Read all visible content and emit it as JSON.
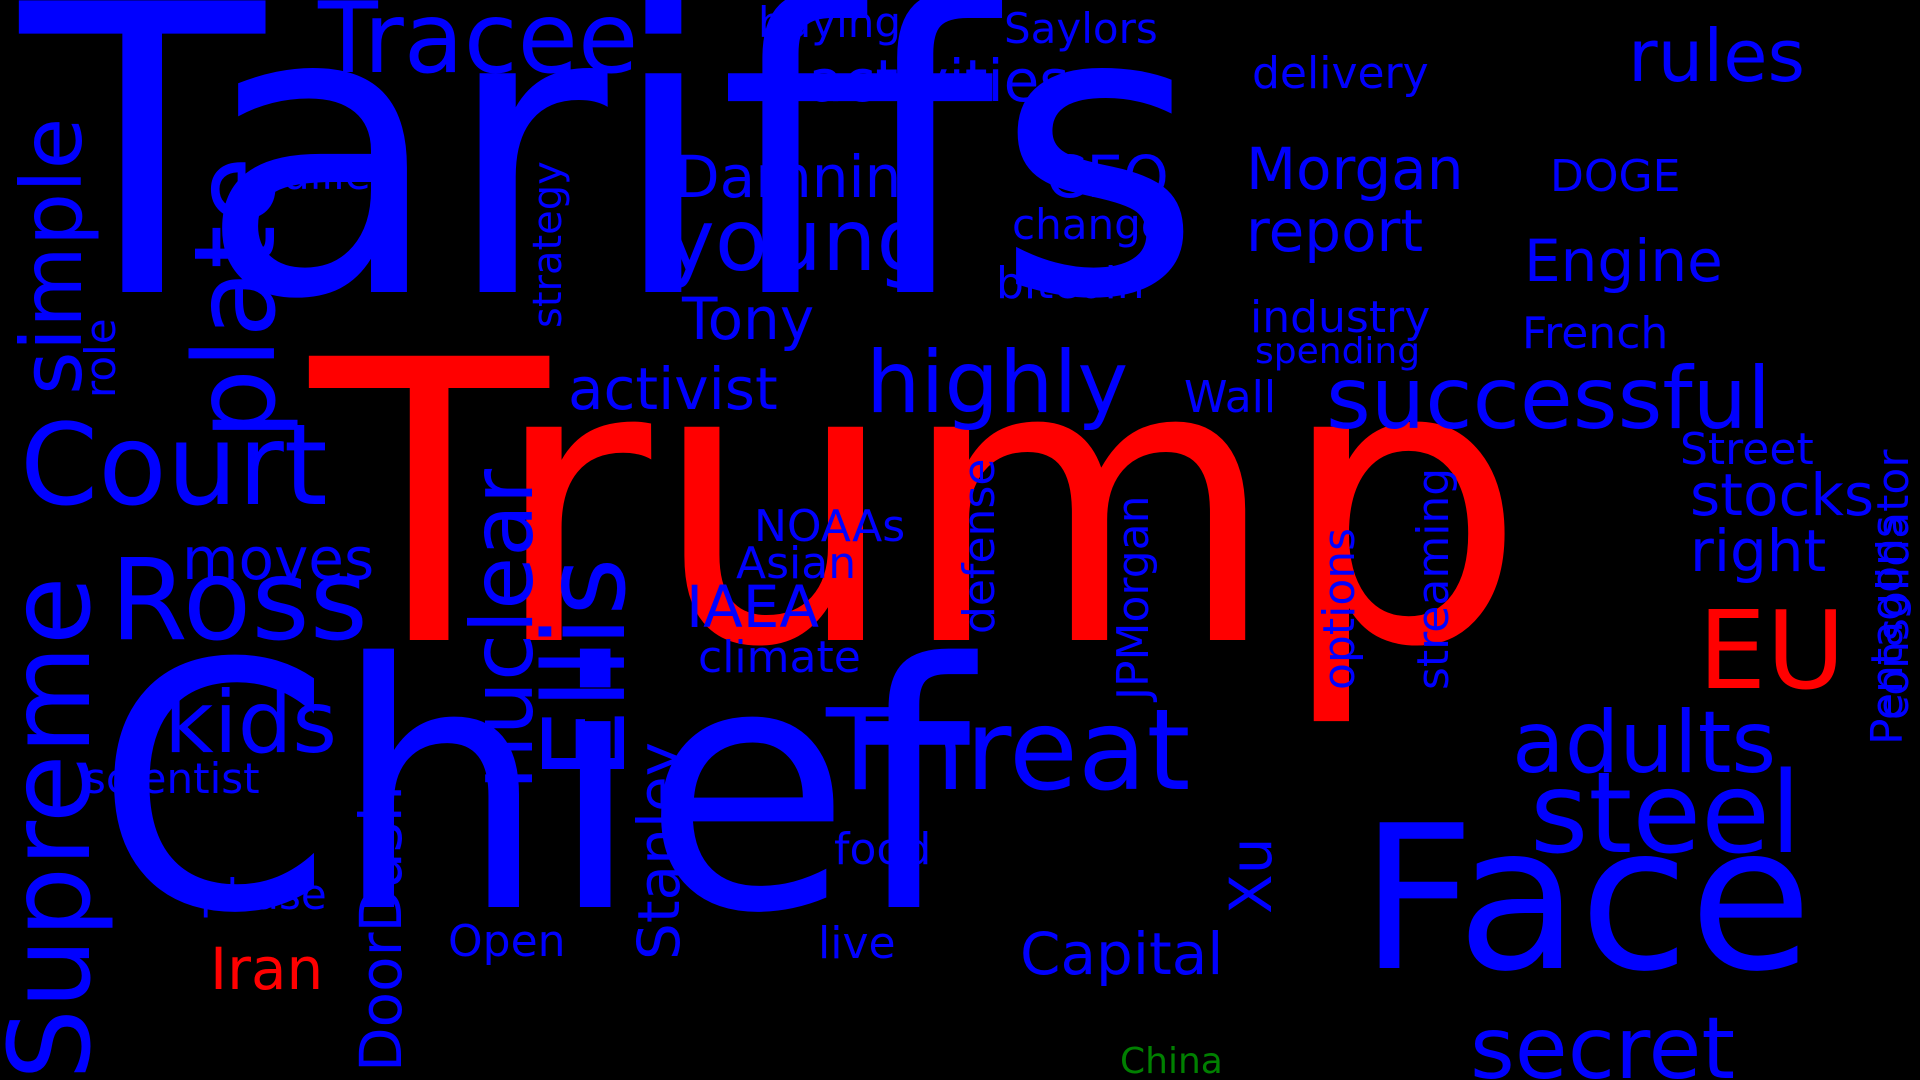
{
  "colors": {
    "background": "#000000",
    "blue": "#0000ff",
    "red": "#ff0000",
    "green": "#008000"
  },
  "words": {
    "tariffs": "Tariffs",
    "trump": "Trump",
    "chief": "Chief",
    "face": "Face",
    "tracee": "Tracee",
    "plate": "plate",
    "court": "Court",
    "ross": "Ross",
    "supreme": "Supreme",
    "simple": "simple",
    "role": "role",
    "allies": "allies",
    "strategy": "strategy",
    "buying": "buying",
    "saylors": "Saylors",
    "activities": "activities",
    "delivery": "delivery",
    "rules": "rules",
    "damning": "Damning",
    "ceo": "CEO",
    "morgan": "Morgan",
    "doge": "DOGE",
    "young": "young",
    "change": "change",
    "report": "report",
    "engine": "Engine",
    "bitcoin": "bitcoin",
    "tony": "Tony",
    "industry": "industry",
    "spending": "spending",
    "french": "French",
    "activist": "activist",
    "highly": "highly",
    "successful": "successful",
    "wall": "Wall",
    "consolidator": "consolidator",
    "street": "Street",
    "stocks": "stocks",
    "pentagons": "Pentagons",
    "right": "right",
    "eu": "EU",
    "nuclear": "nuclear",
    "ellis": "Ellis",
    "noaas": "NOAAs",
    "asian": "Asian",
    "iaea": "IAEA",
    "defense": "defense",
    "options": "options",
    "streaming": "streaming",
    "jpmorgan": "JPMorgan",
    "climate": "climate",
    "moves": "moves",
    "kids": "kids",
    "threat": "Threat",
    "adults": "adults",
    "steel": "steel",
    "scientist": "scientist",
    "stanley": "Stanley",
    "doordash": "DoorDash",
    "food": "food",
    "xu": "Xu",
    "phase": "phase",
    "iran": "Iran",
    "open": "Open",
    "live": "live",
    "capital": "Capital",
    "secret": "secret",
    "china": "China"
  }
}
